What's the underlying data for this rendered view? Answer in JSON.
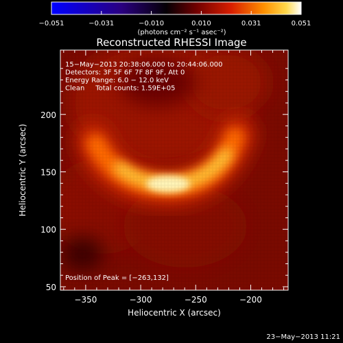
{
  "chart_data": {
    "type": "heatmap",
    "title": "Reconstructed RHESSI Image",
    "xlabel": "Heliocentric X (arcsec)",
    "ylabel": "Heliocentric Y (arcsec)",
    "xlim": [
      -373,
      -166
    ],
    "ylim": [
      47,
      256
    ],
    "x_ticks": [
      -350,
      -300,
      -250,
      -200
    ],
    "y_ticks": [
      50,
      100,
      150,
      200
    ],
    "colorbar": {
      "ticks": [
        "−0.051",
        "−0.031",
        "−0.010",
        "0.010",
        "0.031",
        "0.051"
      ],
      "range": [
        -0.051,
        0.051
      ],
      "unit_label": "(photons cm⁻² s⁻¹ asec⁻²)",
      "colormap": [
        "#0000ff",
        "#1a0060",
        "#000000",
        "#6a0000",
        "#d21e00",
        "#ff8c00",
        "#ffd24a",
        "#ffffff"
      ]
    },
    "annotations": [
      "15−May−2013 20:38:06.000 to 20:44:06.000",
      "Detectors: 3F 5F 6F 7F 8F 9F, Att 0",
      "Energy Range: 6.0 − 12.0 keV",
      "Clean     Total counts: 1.59E+05"
    ],
    "peak": {
      "label": "Position of Peak = [−263,132]",
      "x": -263,
      "y": 132
    },
    "footer_date": "23−May−2013 11:21"
  }
}
